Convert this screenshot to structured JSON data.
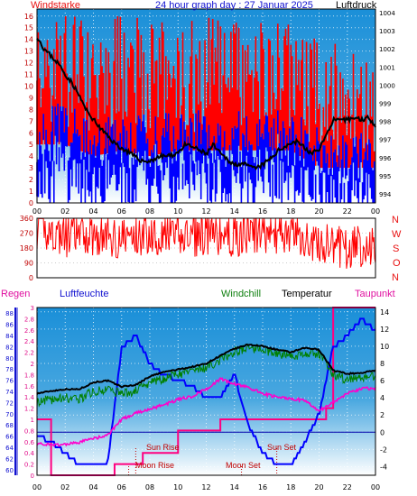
{
  "header": {
    "left_title": "Windstarke",
    "center_title": "24 hour graph day : 27 Januar 2025",
    "right_title": "Luftdruck"
  },
  "bottom_header": {
    "regen": "Regen",
    "luftfeuchte": "Luftfeuchte",
    "windchill": "Windchill",
    "temperatur": "Temperatur",
    "taupunkt": "Taupunkt"
  },
  "compass": [
    "N",
    "W",
    "S",
    "O",
    "N"
  ],
  "annotations": {
    "sun_rise": "Sun Rise",
    "sun_set": "Sun Set",
    "moon_rise": "Moon Rise",
    "moon_set": "Moon Set"
  },
  "colors": {
    "wind": "#ff0000",
    "gust": "#0000ff",
    "pressure": "#000000",
    "humidity": "#0000ff",
    "windchill": "#008000",
    "temperature": "#000000",
    "dewpoint": "#ff00cc",
    "rain": "#ff0080",
    "panel_top": "#1a8fd8",
    "panel_bottom": "#ffffff"
  },
  "chart_data": [
    {
      "type": "line",
      "name": "wind-pressure",
      "x_ticks": [
        "00",
        "02",
        "04",
        "06",
        "08",
        "10",
        "12",
        "14",
        "16",
        "18",
        "20",
        "22",
        "00"
      ],
      "y_left_ticks": [
        "0",
        "1",
        "2",
        "3",
        "4",
        "5",
        "6",
        "7",
        "8",
        "9",
        "10",
        "11",
        "12",
        "13",
        "14",
        "15",
        "16"
      ],
      "y_right_ticks": [
        "994",
        "995",
        "996",
        "997",
        "998",
        "999",
        "1000",
        "1001",
        "1002",
        "1003",
        "1004"
      ],
      "ylim_left": [
        0,
        16.6
      ],
      "ylim_right": [
        993.5,
        1004.2
      ],
      "pressure": {
        "x": [
          0,
          0.5,
          1,
          1.5,
          2,
          2.5,
          3,
          3.5,
          4,
          4.5,
          5,
          5.5,
          6,
          6.5,
          7,
          7.5,
          8,
          8.5,
          9,
          9.5,
          10,
          10.5,
          11,
          11.5,
          12,
          12.5,
          13,
          13.5,
          14,
          14.5,
          15,
          15.5,
          16,
          16.5,
          17,
          17.5,
          18,
          18.5,
          19,
          19.5,
          20,
          20.5,
          21,
          21.5,
          22,
          22.5,
          23,
          23.5,
          24
        ],
        "values": [
          1002.7,
          1002,
          1001.6,
          1001.2,
          1000.6,
          1000.1,
          999.4,
          998.6,
          998.1,
          997.6,
          997.2,
          996.8,
          996.5,
          996.3,
          996,
          995.8,
          995.8,
          996,
          996.1,
          996.1,
          996.3,
          996.7,
          996.6,
          996.4,
          996.2,
          996.7,
          996.2,
          995.9,
          995.6,
          995.7,
          995.5,
          995.4,
          995.6,
          995.9,
          996.3,
          996.6,
          996.8,
          996.9,
          996.5,
          996.2,
          996.5,
          997.2,
          998.1,
          998,
          998.1,
          998.2,
          998.1,
          998.2,
          997.8
        ]
      },
      "wind_level": {
        "x": [
          0,
          2,
          4,
          6,
          8,
          10,
          12,
          14,
          16,
          18,
          20,
          22,
          24
        ],
        "values": [
          6,
          6,
          5,
          5.5,
          5,
          5.5,
          5.5,
          5.5,
          5.5,
          5.5,
          4,
          4,
          4
        ]
      },
      "gust_level": {
        "x": [
          0,
          2,
          4,
          6,
          8,
          10,
          12,
          14,
          16,
          18,
          20,
          22,
          24
        ],
        "values": [
          9,
          9,
          9,
          9,
          9,
          9,
          9,
          9,
          9,
          9,
          7,
          7,
          7
        ]
      }
    },
    {
      "type": "scatter",
      "name": "wind-direction",
      "y_ticks": [
        "0",
        "90",
        "180",
        "270",
        "360"
      ],
      "ylim": [
        0,
        360
      ],
      "x": [
        0,
        2,
        4,
        6,
        8,
        10,
        12,
        14,
        16,
        18,
        20,
        22,
        24
      ],
      "values": [
        300,
        250,
        260,
        240,
        270,
        250,
        260,
        250,
        280,
        260,
        200,
        180,
        200
      ]
    },
    {
      "type": "line",
      "name": "temperature-humidity",
      "x_ticks": [
        "00",
        "02",
        "04",
        "06",
        "08",
        "10",
        "12",
        "14",
        "16",
        "18",
        "20",
        "22",
        "00"
      ],
      "y_left_rain_ticks": [
        "0",
        "0.2",
        "0.4",
        "0.6",
        "0.8",
        "1",
        "1.2",
        "1.4",
        "1.6",
        "1.8",
        "2",
        "2.2",
        "2.4",
        "2.6",
        "2.8",
        "3"
      ],
      "y_left_hum_ticks": [
        "60",
        "62",
        "64",
        "66",
        "68",
        "70",
        "72",
        "74",
        "76",
        "78",
        "80",
        "82",
        "84",
        "86",
        "88"
      ],
      "y_right_ticks": [
        "-4",
        "-2",
        "0",
        "2",
        "4",
        "6",
        "8",
        "10",
        "12",
        "14"
      ],
      "ylim_temp": [
        -5,
        14.5
      ],
      "ylim_hum": [
        59,
        89
      ],
      "ylim_rain": [
        0,
        3
      ],
      "temperature": {
        "x": [
          0,
          1,
          2,
          3,
          4,
          5,
          6,
          7,
          8,
          9,
          10,
          11,
          12,
          13,
          14,
          15,
          16,
          17,
          18,
          19,
          20,
          21,
          22,
          23,
          24
        ],
        "values": [
          4.5,
          4.8,
          5,
          5,
          5.8,
          6,
          5.3,
          5.5,
          6.5,
          7,
          7.3,
          7.6,
          8,
          8.9,
          9.7,
          10.2,
          10,
          9.6,
          9.3,
          9.8,
          9.6,
          7.2,
          6.8,
          6.9,
          7.2
        ]
      },
      "windchill": {
        "x": [
          0,
          1,
          2,
          3,
          4,
          5,
          6,
          7,
          8,
          9,
          10,
          11,
          12,
          13,
          14,
          15,
          16,
          17,
          18,
          19,
          20,
          21,
          22,
          23,
          24
        ],
        "values": [
          3.5,
          3.8,
          4,
          3.9,
          4.7,
          5,
          4.5,
          4.8,
          5.8,
          6.3,
          6.7,
          7.3,
          7.5,
          8.4,
          9.4,
          9.7,
          9.6,
          9.2,
          8.8,
          9.1,
          9.2,
          6.7,
          6.1,
          6.3,
          6.6
        ]
      },
      "dewpoint": {
        "x": [
          0,
          1,
          2,
          3,
          4,
          5,
          6,
          7,
          8,
          9,
          10,
          11,
          12,
          13,
          14,
          15,
          16,
          17,
          18,
          19,
          20,
          21,
          22,
          23,
          24
        ],
        "values": [
          -1.3,
          -1.5,
          -1.4,
          -1.2,
          -0.7,
          -0.4,
          1.5,
          2.2,
          2.7,
          3.2,
          3.8,
          4.2,
          5,
          6.2,
          5.6,
          5.2,
          4.5,
          4.1,
          3.9,
          3.7,
          2.5,
          3.5,
          4.5,
          5.1,
          5.1
        ]
      },
      "humidity": {
        "x": [
          0,
          1,
          2,
          3,
          4,
          5,
          6,
          7,
          8,
          9,
          10,
          11,
          12,
          13,
          14,
          15,
          16,
          17,
          18,
          19,
          20,
          21,
          22,
          23,
          24
        ],
        "values": [
          66,
          65,
          63,
          61,
          61,
          61,
          82,
          84,
          79,
          77,
          76,
          75,
          73,
          73,
          77,
          68,
          63,
          61,
          61,
          65,
          70,
          82,
          84,
          87,
          85
        ]
      },
      "rain": {
        "x": [
          0,
          0.5,
          1,
          5,
          5.5,
          7,
          7.5,
          9.5,
          10,
          13,
          15,
          18,
          20,
          20.5,
          21,
          24
        ],
        "values": [
          1,
          1,
          0,
          0,
          0.2,
          0.2,
          0.4,
          0.4,
          0.8,
          1,
          1,
          1,
          1,
          1.2,
          3,
          3
        ]
      },
      "zero_line": 0
    }
  ]
}
